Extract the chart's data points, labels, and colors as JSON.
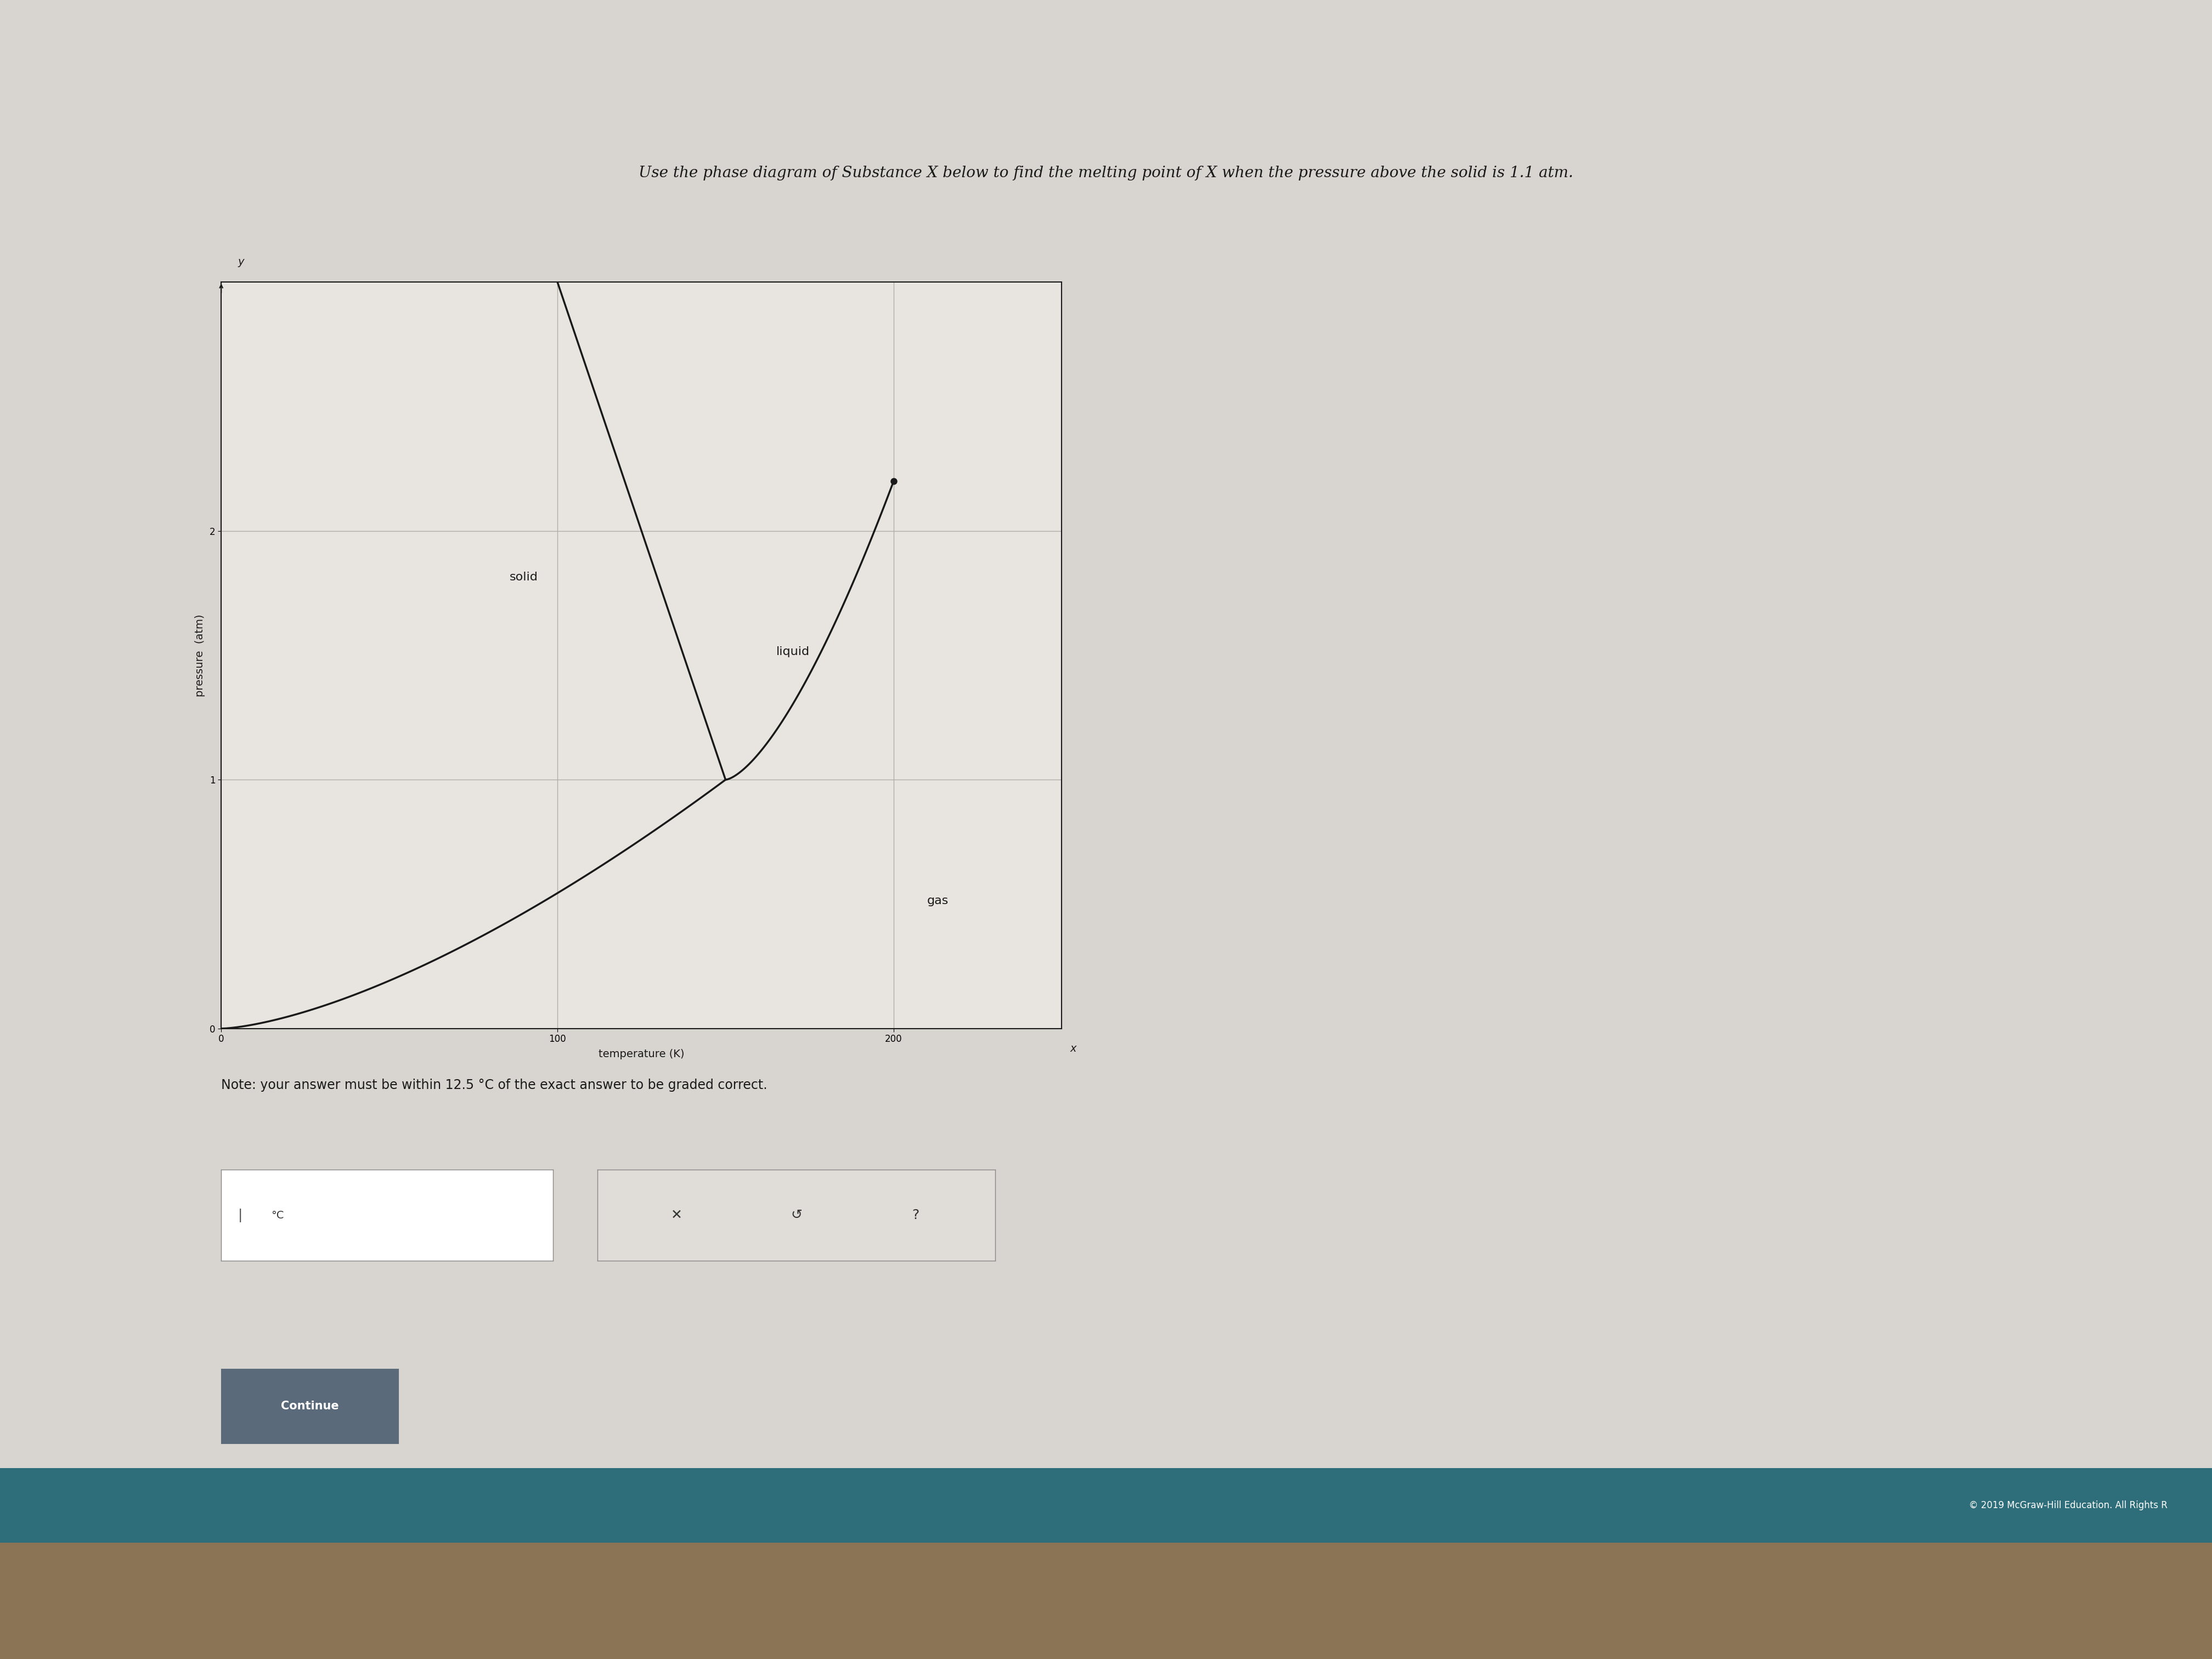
{
  "title": "Use the phase diagram of Substance X below to find the melting point of X when the pressure above the solid is 1.1 atm.",
  "xlabel": "temperature (K)",
  "ylabel": "pressure  (atm)",
  "note": "Note: your answer must be within 12.5 °C of the exact answer to be graded correct.",
  "copyright": "© 2019 McGraw-Hill Education. All Rights R",
  "bg_color": "#d8d4cf",
  "plot_bg_color": "#e8e5e0",
  "grid_color": "#b0aca6",
  "line_color": "#1a1a1a",
  "xlim": [
    0,
    250
  ],
  "ylim": [
    0,
    3
  ],
  "xticks": [
    0,
    100,
    200
  ],
  "yticks": [
    0,
    1,
    2
  ],
  "solid_label": "solid",
  "liquid_label": "liquid",
  "gas_label": "gas",
  "triple_point": [
    150,
    1.0
  ],
  "critical_point": [
    200,
    2.2
  ],
  "melting_curve_x": [
    100,
    150
  ],
  "melting_curve_y": [
    3.0,
    1.0
  ],
  "sublimation_curve_x": [
    0,
    150
  ],
  "sublimation_curve_y": [
    0.0,
    1.0
  ],
  "vaporization_curve_x": [
    150,
    200
  ],
  "vaporization_curve_y": [
    1.0,
    2.2
  ],
  "font_size_title": 18,
  "font_size_labels": 14,
  "font_size_note": 16,
  "font_size_region": 14
}
